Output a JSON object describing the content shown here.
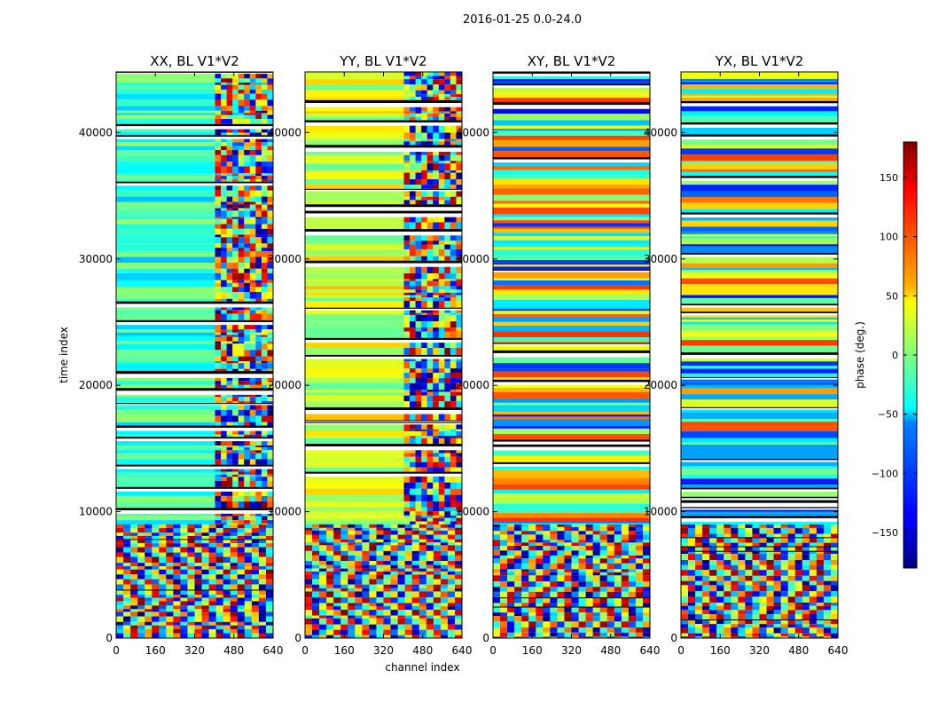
{
  "figure": {
    "suptitle": "2016-01-25 0.0-24.0"
  },
  "chart_data": {
    "type": "heatmap",
    "suptitle": "2016-01-25 0.0-24.0",
    "panels": [
      {
        "title": "XX, BL V1*V2",
        "xlabel": "",
        "ylabel": "time index"
      },
      {
        "title": "YY, BL V1*V2",
        "xlabel": "channel index",
        "ylabel": ""
      },
      {
        "title": "XY, BL V1*V2",
        "xlabel": "",
        "ylabel": ""
      },
      {
        "title": "YX, BL V1*V2",
        "xlabel": "",
        "ylabel": ""
      }
    ],
    "x_ticks": [
      "0",
      "160",
      "320",
      "480",
      "640"
    ],
    "x_tick_values": [
      0,
      160,
      320,
      480,
      640
    ],
    "xlim": [
      0,
      640
    ],
    "y_ticks": [
      "0",
      "10000",
      "20000",
      "30000",
      "40000"
    ],
    "y_tick_values": [
      0,
      10000,
      20000,
      30000,
      40000
    ],
    "ylim": [
      0,
      44800
    ],
    "colorbar": {
      "label": "phase (deg.)",
      "ticks": [
        "−150",
        "−100",
        "−50",
        "0",
        "50",
        "100",
        "150"
      ],
      "tick_values": [
        -150,
        -100,
        -50,
        0,
        50,
        100,
        150
      ],
      "range": [
        -180,
        180
      ],
      "colormap": "jet"
    },
    "grid": false
  }
}
